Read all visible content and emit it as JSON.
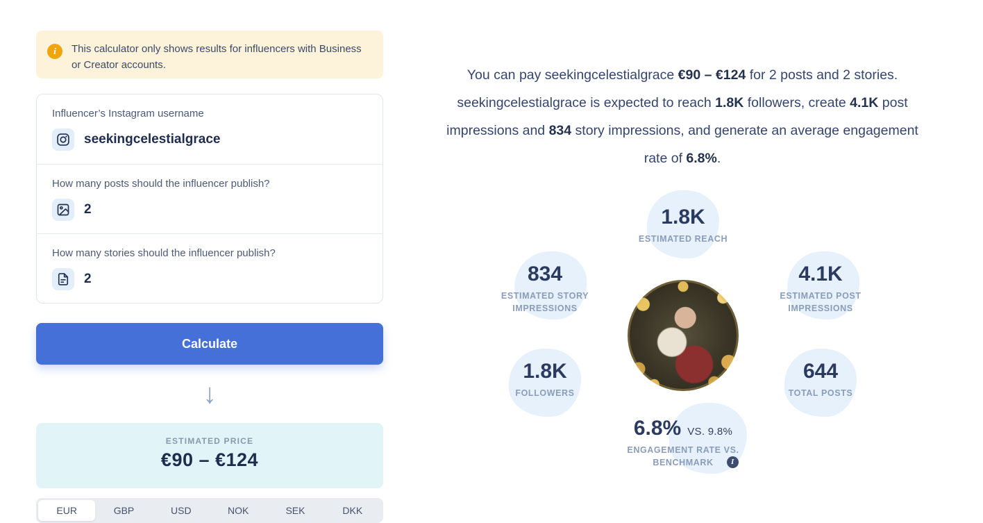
{
  "banner": {
    "text": "This calculator only shows results for influencers with Business or Creator accounts.",
    "icon": "info-circle",
    "colors": {
      "bg": "#fcf3da",
      "icon": "#f0a50c"
    }
  },
  "form": {
    "username": {
      "label": "Influencer’s Instagram username",
      "value": "seekingcelestialgrace",
      "icon": "instagram"
    },
    "posts": {
      "label": "How many posts should the influencer publish?",
      "value": "2",
      "icon": "image"
    },
    "stories": {
      "label": "How many stories should the influencer publish?",
      "value": "2",
      "icon": "file-document"
    },
    "calculate_label": "Calculate"
  },
  "arrow_icon": "arrow-down",
  "result": {
    "label": "ESTIMATED PRICE",
    "value": "€90 – €124",
    "colors": {
      "bg": "#e1f5f9",
      "value": "#1f2c4d"
    }
  },
  "currencies": {
    "options": [
      "EUR",
      "GBP",
      "USD",
      "NOK",
      "SEK",
      "DKK"
    ],
    "selected": "EUR"
  },
  "summary": {
    "segments": [
      {
        "text": "You can pay seekingcelestialgrace ",
        "bold": false
      },
      {
        "text": "€90 – €124",
        "bold": true
      },
      {
        "text": " for 2 posts and 2 stories. seekingcelestialgrace is expected to reach ",
        "bold": false
      },
      {
        "text": "1.8K",
        "bold": true
      },
      {
        "text": " followers, create ",
        "bold": false
      },
      {
        "text": "4.1K",
        "bold": true
      },
      {
        "text": " post impressions and ",
        "bold": false
      },
      {
        "text": "834",
        "bold": true
      },
      {
        "text": " story impressions, and generate an average engagement rate of ",
        "bold": false
      },
      {
        "text": "6.8%",
        "bold": true
      },
      {
        "text": ".",
        "bold": false
      }
    ]
  },
  "stats": {
    "reach": {
      "value": "1.8K",
      "label": "ESTIMATED REACH"
    },
    "story_impressions": {
      "value": "834",
      "label": "ESTIMATED STORY IMPRESSIONS"
    },
    "post_impressions": {
      "value": "4.1K",
      "label": "ESTIMATED POST IMPRESSIONS"
    },
    "followers": {
      "value": "1.8K",
      "label": "FOLLOWERS"
    },
    "total_posts": {
      "value": "644",
      "label": "TOTAL POSTS"
    },
    "engagement": {
      "value": "6.8%",
      "vs": "vs. 9.8%",
      "label": "ENGAGEMENT RATE VS. BENCHMARK",
      "info_icon": "info-circle"
    }
  },
  "colors": {
    "accent_blue": "#4470d8",
    "blob_blue": "#e6f1fb",
    "text_dark": "#2b3a5f",
    "text_muted": "#8a9cba"
  }
}
